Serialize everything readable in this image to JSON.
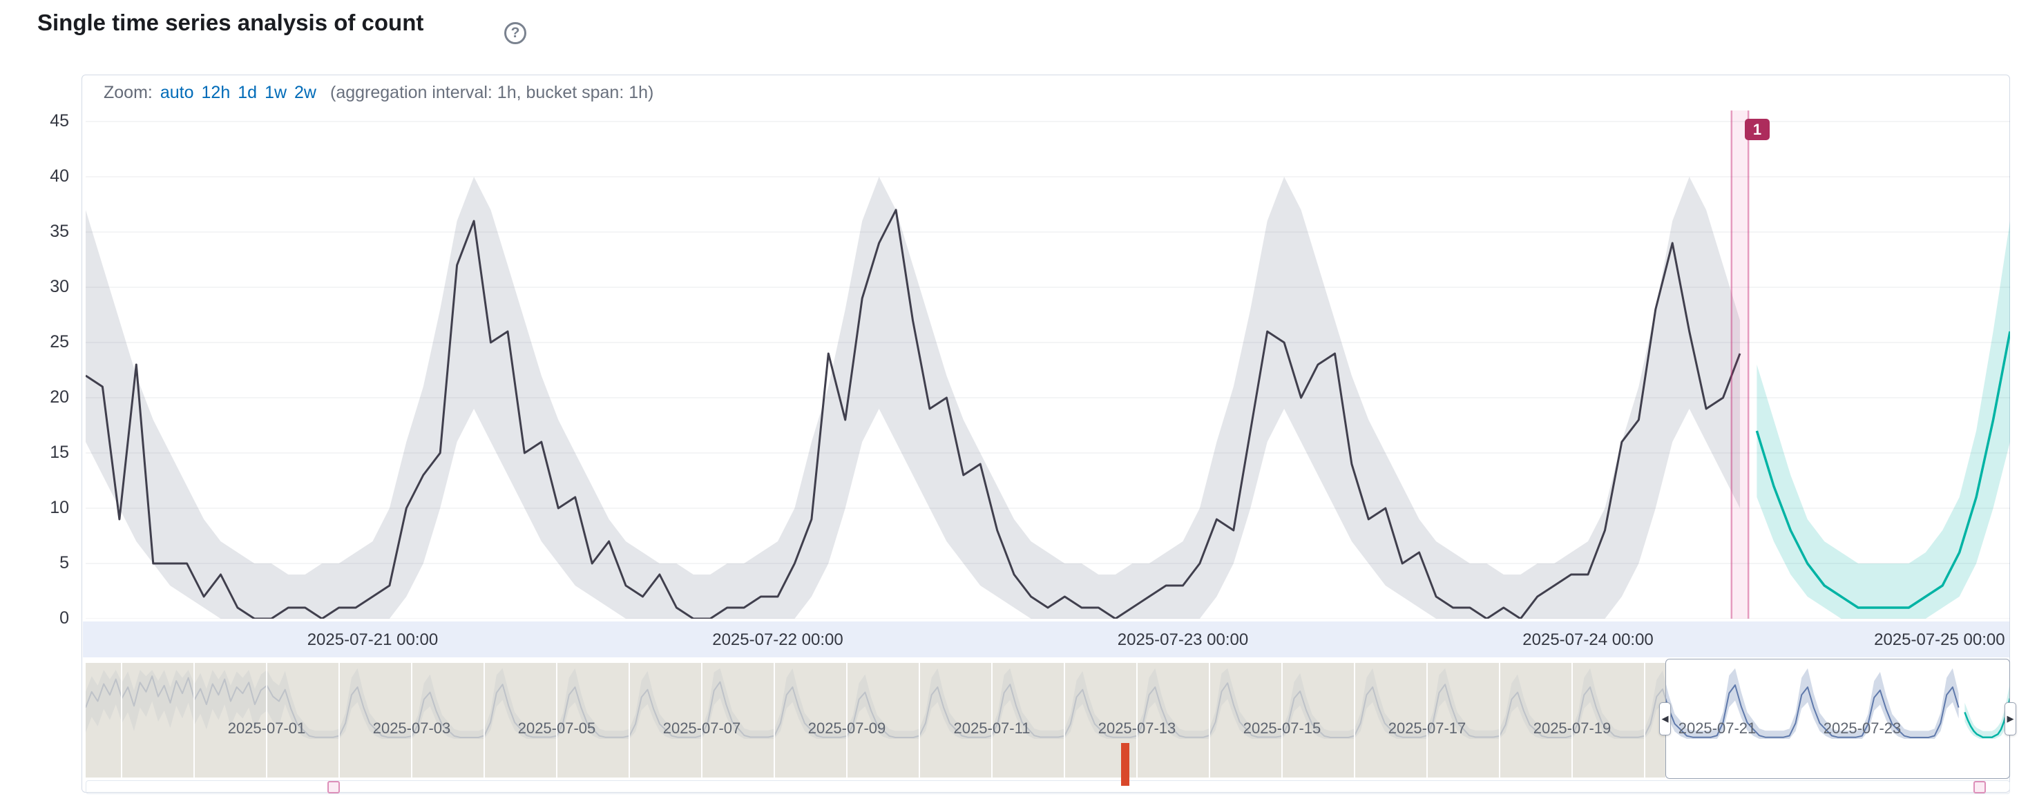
{
  "title": "Single time series analysis of count",
  "help_icon": "?",
  "zoom": {
    "label": "Zoom:",
    "links": [
      "auto",
      "12h",
      "1d",
      "1w",
      "2w"
    ],
    "info": "(aggregation interval: 1h, bucket span: 1h)"
  },
  "colors": {
    "link": "#006bb8",
    "observed_line": "#403f4d",
    "bounds_fill": "rgba(105,115,140,0.18)",
    "forecast_line": "#00b3a4",
    "forecast_fill": "rgba(0,179,164,0.18)",
    "annotation_badge": "#ad2c5c",
    "annotation_fill": "rgba(221,10,115,0.08)",
    "annotation_edge": "rgba(200,45,120,0.45)",
    "annotation_marker_border": "#dd8fb9",
    "annotation_marker_fill": "#fbecf4",
    "context_line": "#5f79ab",
    "context_fill": "rgba(95,121,171,0.28)",
    "swimlane_marker": "#d9482b",
    "xaxis_strip_bg": "#e9eef9",
    "mask": "rgba(222,219,210,0.75)"
  },
  "chart_data": {
    "type": "line",
    "title": "Single time series analysis of count",
    "focus": {
      "start": "2025-07-20 07:00",
      "end": "2025-07-25 01:00",
      "hours_total": 114,
      "start_hour_of_day": 7,
      "bucket_span": "1h",
      "aggregation_interval": "1h",
      "ylim": [
        0,
        46
      ],
      "yticks": [
        45,
        40,
        35,
        30,
        25,
        20,
        15,
        10,
        5,
        0
      ],
      "xticks": [
        "2025-07-21 00:00",
        "2025-07-22 00:00",
        "2025-07-23 00:00",
        "2025-07-24 00:00",
        "2025-07-25 00:00"
      ],
      "xtick_offsets_hours": [
        17,
        41,
        65,
        89,
        113
      ],
      "observed": [
        22,
        21,
        9,
        23,
        5,
        5,
        5,
        2,
        4,
        1,
        0,
        0,
        1,
        1,
        0,
        1,
        1,
        2,
        3,
        10,
        13,
        15,
        32,
        36,
        25,
        26,
        15,
        16,
        10,
        11,
        5,
        7,
        3,
        2,
        4,
        1,
        0,
        0,
        1,
        1,
        2,
        2,
        5,
        9,
        24,
        18,
        29,
        34,
        37,
        27,
        19,
        20,
        13,
        14,
        8,
        4,
        2,
        1,
        2,
        1,
        1,
        0,
        1,
        2,
        3,
        3,
        5,
        9,
        8,
        17,
        26,
        25,
        20,
        23,
        24,
        14,
        9,
        10,
        5,
        6,
        2,
        1,
        1,
        0,
        1,
        0,
        2,
        3,
        4,
        4,
        8,
        16,
        18,
        28,
        34,
        26,
        19,
        20,
        24
      ],
      "bounds_by_hour": [
        [
          0,
          7
        ],
        [
          0,
          10
        ],
        [
          2,
          16
        ],
        [
          5,
          21
        ],
        [
          10,
          28
        ],
        [
          16,
          36
        ],
        [
          19,
          40
        ],
        [
          16,
          37
        ],
        [
          13,
          32
        ],
        [
          10,
          27
        ],
        [
          7,
          22
        ],
        [
          5,
          18
        ],
        [
          3,
          15
        ],
        [
          2,
          12
        ],
        [
          1,
          9
        ],
        [
          0,
          7
        ],
        [
          0,
          6
        ],
        [
          0,
          5
        ],
        [
          0,
          5
        ],
        [
          0,
          4
        ],
        [
          0,
          4
        ],
        [
          0,
          5
        ],
        [
          0,
          5
        ],
        [
          0,
          6
        ]
      ],
      "forecast": {
        "start_offset_hours": 99,
        "values": [
          17,
          12,
          8,
          5,
          3,
          2,
          1,
          1,
          1,
          1,
          2,
          3,
          6,
          11,
          18,
          26
        ],
        "upper": [
          23,
          18,
          13,
          9,
          7,
          6,
          5,
          5,
          5,
          5,
          6,
          8,
          11,
          17,
          26,
          36
        ],
        "lower": [
          11,
          7,
          4,
          2,
          1,
          0,
          0,
          0,
          0,
          0,
          0,
          1,
          2,
          5,
          10,
          16
        ]
      },
      "annotation": {
        "label": "1",
        "center_hour": 98,
        "width_hours": 1
      }
    },
    "context": {
      "start": "2025-06-28 12:00",
      "end": "2025-07-25 01:00",
      "hours_total": 637,
      "labels": [
        "2025-07-01",
        "2025-07-03",
        "2025-07-05",
        "2025-07-07",
        "2025-07-09",
        "2025-07-11",
        "2025-07-13",
        "2025-07-15",
        "2025-07-17",
        "2025-07-19",
        "2025-07-21",
        "2025-07-23"
      ],
      "label_offsets_hours": [
        60,
        108,
        156,
        204,
        252,
        300,
        348,
        396,
        444,
        492,
        540,
        588
      ],
      "blob": {
        "step_hours": 2,
        "values": [
          20,
          30,
          24,
          35,
          28,
          38,
          26,
          33,
          21,
          36,
          30,
          40,
          27,
          34,
          23,
          37,
          29,
          39,
          25,
          32,
          22,
          35,
          28,
          38,
          24,
          33,
          29,
          36,
          22,
          31,
          34,
          27,
          24
        ]
      },
      "day_pattern_2h": [
        2,
        10,
        28,
        33,
        20,
        10,
        6,
        2,
        1,
        1,
        1,
        1
      ],
      "day_scales": [
        0.95,
        1.0,
        0.9,
        1.05,
        1.0,
        0.95,
        1.1,
        1.0,
        0.9,
        1.0,
        1.05,
        0.95,
        1.0,
        1.08,
        0.92,
        1.0,
        1.05,
        0.9,
        1.0,
        0.96,
        1.04,
        1.0,
        0.94,
        1.0
      ],
      "pattern_start_hour": 66,
      "pattern_end_hour": 620,
      "selection": {
        "start_hours": 523,
        "end_hours": 637
      },
      "anomaly_marker_hour": 344,
      "annotation_marker_hours": [
        82,
        627
      ]
    }
  }
}
